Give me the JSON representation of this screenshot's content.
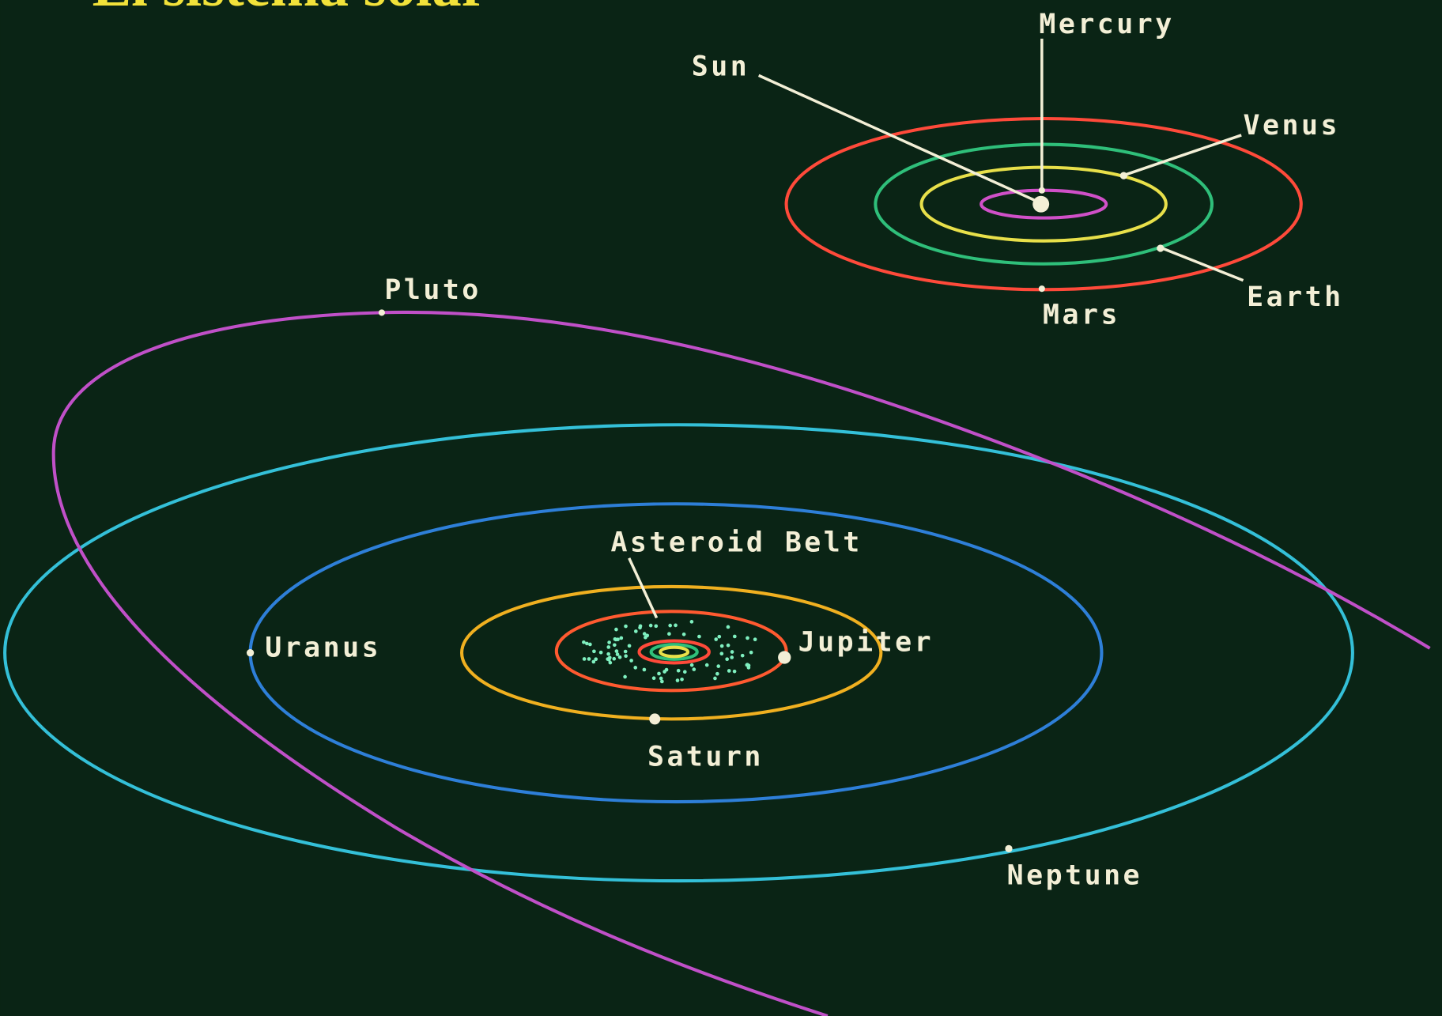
{
  "title": "El sistema solar",
  "inner_system": {
    "labels": [
      "Sun",
      "Mercury",
      "Venus",
      "Earth",
      "Mars"
    ]
  },
  "outer_system": {
    "labels": [
      "Pluto",
      "Asteroid Belt",
      "Jupiter",
      "Uranus",
      "Saturn",
      "Neptune"
    ]
  }
}
